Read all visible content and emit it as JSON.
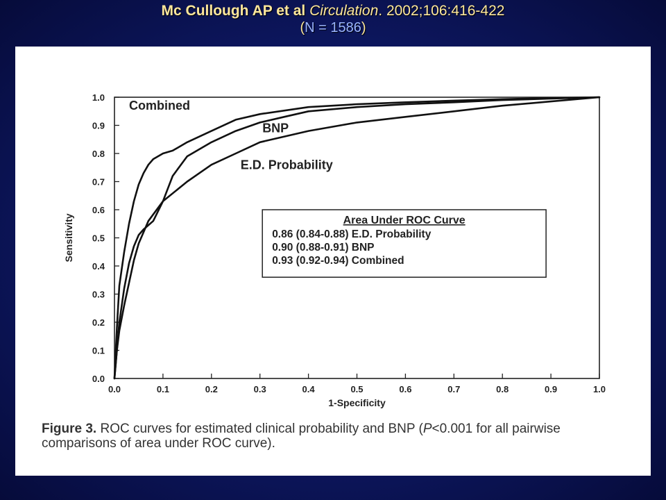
{
  "header": {
    "title_authors": "Mc Cullough AP et al",
    "title_journal": "Circulation",
    "title_citation": ". 2002;106:416-422",
    "subtitle_open": "(",
    "subtitle_text": "N = 1586",
    "subtitle_close": ")"
  },
  "caption": {
    "label": "Figure 3.",
    "text_1": " ROC curves for estimated clinical probability and BNP (",
    "p_symbol": "P",
    "text_2": "<0.001 for all pairwise comparisons of area under ROC curve)."
  },
  "chart_data": {
    "type": "line",
    "xlabel": "1-Specificity",
    "ylabel": "Sensitivity",
    "xlim": [
      0,
      1
    ],
    "ylim": [
      0,
      1
    ],
    "xticks": [
      "0.0",
      "0.1",
      "0.2",
      "0.3",
      "0.4",
      "0.5",
      "0.6",
      "0.7",
      "0.8",
      "0.9",
      "1.0"
    ],
    "yticks": [
      "0.0",
      "0.1",
      "0.2",
      "0.3",
      "0.4",
      "0.5",
      "0.6",
      "0.7",
      "0.8",
      "0.9",
      "1.0"
    ],
    "grid": false,
    "series": [
      {
        "name": "Combined",
        "x": [
          0,
          0.005,
          0.01,
          0.02,
          0.03,
          0.04,
          0.05,
          0.06,
          0.07,
          0.08,
          0.1,
          0.12,
          0.15,
          0.2,
          0.25,
          0.3,
          0.4,
          0.5,
          0.6,
          0.7,
          0.8,
          0.9,
          1.0
        ],
        "y": [
          0,
          0.18,
          0.33,
          0.45,
          0.55,
          0.63,
          0.69,
          0.73,
          0.76,
          0.78,
          0.8,
          0.81,
          0.84,
          0.88,
          0.92,
          0.94,
          0.965,
          0.975,
          0.982,
          0.988,
          0.993,
          0.997,
          1.0
        ]
      },
      {
        "name": "BNP",
        "x": [
          0,
          0.005,
          0.01,
          0.02,
          0.03,
          0.04,
          0.05,
          0.06,
          0.08,
          0.1,
          0.12,
          0.15,
          0.2,
          0.25,
          0.3,
          0.35,
          0.4,
          0.5,
          0.6,
          0.7,
          0.8,
          0.9,
          1.0
        ],
        "y": [
          0,
          0.1,
          0.2,
          0.32,
          0.41,
          0.47,
          0.51,
          0.53,
          0.56,
          0.63,
          0.72,
          0.79,
          0.84,
          0.88,
          0.91,
          0.93,
          0.95,
          0.965,
          0.975,
          0.982,
          0.99,
          0.995,
          1.0
        ]
      },
      {
        "name": "E.D. Probability",
        "x": [
          0,
          0.005,
          0.01,
          0.02,
          0.03,
          0.04,
          0.05,
          0.07,
          0.1,
          0.15,
          0.2,
          0.25,
          0.3,
          0.4,
          0.5,
          0.6,
          0.7,
          0.8,
          0.9,
          1.0
        ],
        "y": [
          0,
          0.1,
          0.17,
          0.26,
          0.34,
          0.42,
          0.48,
          0.56,
          0.63,
          0.7,
          0.76,
          0.8,
          0.84,
          0.88,
          0.91,
          0.93,
          0.95,
          0.97,
          0.985,
          1.0
        ]
      }
    ],
    "curve_labels": [
      "Combined",
      "BNP",
      "E.D. Probability"
    ],
    "auc_box": {
      "title": "Area Under ROC Curve",
      "rows": [
        "0.86 (0.84-0.88) E.D. Probability",
        "0.90 (0.88-0.91) BNP",
        "0.93 (0.92-0.94) Combined"
      ]
    }
  }
}
